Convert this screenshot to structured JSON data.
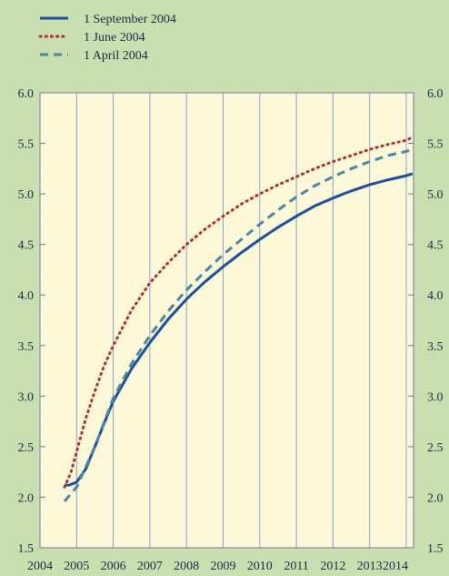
{
  "chart_data": {
    "type": "line",
    "title": "",
    "xlabel": "",
    "ylabel": "",
    "xlim": [
      2004,
      2014.2
    ],
    "ylim": [
      1.5,
      6.0
    ],
    "x_ticks": [
      2004,
      2005,
      2006,
      2007,
      2008,
      2009,
      2010,
      2011,
      2012,
      2013,
      2014
    ],
    "x_tick_labels": [
      "2004",
      "2005",
      "2006",
      "2007",
      "2008",
      "2009",
      "2010",
      "2011",
      "2012",
      "2013",
      "2014"
    ],
    "y_ticks": [
      1.5,
      2.0,
      2.5,
      3.0,
      3.5,
      4.0,
      4.5,
      5.0,
      5.5,
      6.0
    ],
    "y_tick_labels": [
      "1.5",
      "2.0",
      "2.5",
      "3.0",
      "3.5",
      "4.0",
      "4.5",
      "5.0",
      "5.5",
      "6.0"
    ],
    "grid": "vertical",
    "legend_position": "top-left",
    "plot_background": "#fdf8d8",
    "page_background": "#c9dfb0",
    "gridline_color": "#8aa0c8",
    "series": [
      {
        "name": "1 September 2004",
        "color": "#1a4f9c",
        "style": "solid",
        "x": [
          2004.67,
          2004.8,
          2005.0,
          2005.25,
          2005.5,
          2005.75,
          2006.0,
          2006.5,
          2007.0,
          2007.5,
          2008.0,
          2008.5,
          2009.0,
          2009.5,
          2010.0,
          2010.5,
          2011.0,
          2011.5,
          2012.0,
          2012.5,
          2013.0,
          2013.5,
          2014.0,
          2014.17
        ],
        "values": [
          2.12,
          2.12,
          2.15,
          2.28,
          2.5,
          2.73,
          2.95,
          3.27,
          3.53,
          3.76,
          3.96,
          4.13,
          4.28,
          4.42,
          4.55,
          4.67,
          4.78,
          4.88,
          4.96,
          5.03,
          5.09,
          5.14,
          5.18,
          5.2
        ]
      },
      {
        "name": "1 June 2004",
        "color": "#b03030",
        "style": "dotted",
        "x": [
          2004.67,
          2004.85,
          2005.0,
          2005.25,
          2005.5,
          2005.75,
          2006.0,
          2006.5,
          2007.0,
          2007.5,
          2008.0,
          2008.5,
          2009.0,
          2009.5,
          2010.0,
          2010.5,
          2011.0,
          2011.5,
          2012.0,
          2012.5,
          2013.0,
          2013.5,
          2014.0,
          2014.17
        ],
        "values": [
          2.1,
          2.25,
          2.45,
          2.78,
          3.05,
          3.3,
          3.5,
          3.85,
          4.12,
          4.32,
          4.5,
          4.65,
          4.78,
          4.9,
          5.0,
          5.09,
          5.17,
          5.25,
          5.32,
          5.38,
          5.44,
          5.49,
          5.53,
          5.56
        ]
      },
      {
        "name": "1 April 2004",
        "color": "#4a87a2",
        "style": "dashed",
        "x": [
          2004.67,
          2005.0,
          2005.5,
          2006.0,
          2006.5,
          2007.0,
          2007.5,
          2008.0,
          2008.5,
          2009.0,
          2009.5,
          2010.0,
          2010.5,
          2011.0,
          2011.5,
          2012.0,
          2012.5,
          2013.0,
          2013.5,
          2014.0,
          2014.17
        ],
        "values": [
          1.96,
          2.1,
          2.5,
          2.98,
          3.32,
          3.6,
          3.84,
          4.05,
          4.23,
          4.4,
          4.55,
          4.7,
          4.84,
          4.97,
          5.08,
          5.17,
          5.25,
          5.32,
          5.38,
          5.42,
          5.44
        ]
      }
    ]
  }
}
